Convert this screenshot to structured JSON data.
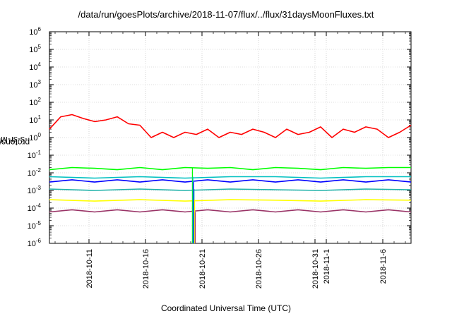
{
  "chart_data": {
    "type": "line",
    "title": "/data/run/goesPlots/archive/2018-11-07/flux/../flux/31daysMoonFluxes.txt",
    "xlabel": "Coordinated Universal Time (UTC)",
    "ylabel_base": "protons/cm",
    "ylabel_sup": "2",
    "ylabel_rest": "-s-sr-MeV",
    "yscale": "log",
    "ylim": [
      1e-06,
      1000000.0
    ],
    "y_ticks": [
      {
        "mantissa": "10",
        "exp": "-6",
        "value": 1e-06
      },
      {
        "mantissa": "10",
        "exp": "-5",
        "value": 1e-05
      },
      {
        "mantissa": "10",
        "exp": "-4",
        "value": 0.0001
      },
      {
        "mantissa": "10",
        "exp": "-3",
        "value": 0.001
      },
      {
        "mantissa": "10",
        "exp": "-2",
        "value": 0.01
      },
      {
        "mantissa": "10",
        "exp": "-1",
        "value": 0.1
      },
      {
        "mantissa": "10",
        "exp": "0",
        "value": 1
      },
      {
        "mantissa": "10",
        "exp": "1",
        "value": 10
      },
      {
        "mantissa": "10",
        "exp": "2",
        "value": 100
      },
      {
        "mantissa": "10",
        "exp": "3",
        "value": 1000
      },
      {
        "mantissa": "10",
        "exp": "4",
        "value": 10000
      },
      {
        "mantissa": "10",
        "exp": "5",
        "value": 100000
      },
      {
        "mantissa": "10",
        "exp": "6",
        "value": 1000000
      }
    ],
    "xlim": [
      "2018-10-07 12:00",
      "2018-11-08 12:00"
    ],
    "x_ticks": [
      {
        "date": "2018-10-11",
        "label": "2018-10-11"
      },
      {
        "date": "2018-10-16",
        "label": "2018-10-16"
      },
      {
        "date": "2018-10-21",
        "label": "2018-10-21"
      },
      {
        "date": "2018-10-26",
        "label": "2018-10-26"
      },
      {
        "date": "2018-10-31",
        "label": "2018-10-31"
      },
      {
        "date": "2018-11-01",
        "label": "2018-11-1"
      },
      {
        "date": "2018-11-06",
        "label": "2018-11-6"
      }
    ],
    "grid": true,
    "legend": "none",
    "dropout": {
      "date": "2018-10-20 06:00",
      "y_low": 1e-06
    },
    "series": [
      {
        "color": "#ff0000",
        "dates": [
          "2018-10-07 12:00",
          "2018-10-08 12:00",
          "2018-10-09 12:00",
          "2018-10-10 12:00",
          "2018-10-11 12:00",
          "2018-10-12 12:00",
          "2018-10-13 12:00",
          "2018-10-14 12:00",
          "2018-10-15 12:00",
          "2018-10-16 12:00",
          "2018-10-17 12:00",
          "2018-10-18 12:00",
          "2018-10-19 12:00",
          "2018-10-20 12:00",
          "2018-10-21 12:00",
          "2018-10-22 12:00",
          "2018-10-23 12:00",
          "2018-10-24 12:00",
          "2018-10-25 12:00",
          "2018-10-26 12:00",
          "2018-10-27 12:00",
          "2018-10-28 12:00",
          "2018-10-29 12:00",
          "2018-10-30 12:00",
          "2018-10-31 12:00",
          "2018-11-01 12:00",
          "2018-11-02 12:00",
          "2018-11-03 12:00",
          "2018-11-04 12:00",
          "2018-11-05 12:00",
          "2018-11-06 12:00",
          "2018-11-07 12:00",
          "2018-11-08 12:00"
        ],
        "values": [
          3,
          15,
          20,
          12,
          8,
          10,
          15,
          6,
          5,
          1,
          2,
          1,
          2,
          1.5,
          3,
          1,
          2,
          1.5,
          3,
          2,
          1,
          3,
          1.5,
          2,
          4,
          1,
          3,
          2,
          4,
          3,
          1,
          2,
          5
        ]
      },
      {
        "color": "#00ff00",
        "dates": [
          "2018-10-07 12:00",
          "2018-10-09 12:00",
          "2018-10-11 12:00",
          "2018-10-13 12:00",
          "2018-10-15 12:00",
          "2018-10-17 12:00",
          "2018-10-19 12:00",
          "2018-10-21 12:00",
          "2018-10-23 12:00",
          "2018-10-25 12:00",
          "2018-10-27 12:00",
          "2018-10-29 12:00",
          "2018-10-31 12:00",
          "2018-11-02 12:00",
          "2018-11-04 12:00",
          "2018-11-06 12:00",
          "2018-11-08 12:00"
        ],
        "values": [
          0.015,
          0.02,
          0.018,
          0.015,
          0.02,
          0.015,
          0.02,
          0.018,
          0.02,
          0.015,
          0.02,
          0.018,
          0.015,
          0.02,
          0.018,
          0.02,
          0.02
        ]
      },
      {
        "color": "#00c0c0",
        "dates": [
          "2018-10-07 12:00",
          "2018-10-11 12:00",
          "2018-10-15 12:00",
          "2018-10-19 12:00",
          "2018-10-23 12:00",
          "2018-10-27 12:00",
          "2018-10-31 12:00",
          "2018-11-04 12:00",
          "2018-11-08 12:00"
        ],
        "values": [
          0.006,
          0.005,
          0.006,
          0.005,
          0.006,
          0.006,
          0.005,
          0.006,
          0.006
        ]
      },
      {
        "color": "#0000ff",
        "dates": [
          "2018-10-07 12:00",
          "2018-10-09 12:00",
          "2018-10-11 12:00",
          "2018-10-13 12:00",
          "2018-10-15 12:00",
          "2018-10-17 12:00",
          "2018-10-19 12:00",
          "2018-10-21 12:00",
          "2018-10-23 12:00",
          "2018-10-25 12:00",
          "2018-10-27 12:00",
          "2018-10-29 12:00",
          "2018-10-31 12:00",
          "2018-11-02 12:00",
          "2018-11-04 12:00",
          "2018-11-06 12:00",
          "2018-11-08 12:00"
        ],
        "values": [
          0.003,
          0.004,
          0.003,
          0.004,
          0.003,
          0.004,
          0.003,
          0.004,
          0.003,
          0.004,
          0.003,
          0.004,
          0.003,
          0.004,
          0.003,
          0.004,
          0.003
        ]
      },
      {
        "color": "#20b2aa",
        "dates": [
          "2018-10-07 12:00",
          "2018-10-11 12:00",
          "2018-10-15 12:00",
          "2018-10-19 12:00",
          "2018-10-23 12:00",
          "2018-10-27 12:00",
          "2018-10-31 12:00",
          "2018-11-04 12:00",
          "2018-11-08 12:00"
        ],
        "values": [
          0.0012,
          0.001,
          0.0012,
          0.001,
          0.0012,
          0.0011,
          0.001,
          0.0012,
          0.0011
        ]
      },
      {
        "color": "#ffff00",
        "dates": [
          "2018-10-07 12:00",
          "2018-10-11 12:00",
          "2018-10-15 12:00",
          "2018-10-19 12:00",
          "2018-10-23 12:00",
          "2018-10-27 12:00",
          "2018-10-31 12:00",
          "2018-11-04 12:00",
          "2018-11-08 12:00"
        ],
        "values": [
          0.0003,
          0.00025,
          0.0003,
          0.00025,
          0.0003,
          0.00028,
          0.00025,
          0.0003,
          0.00028
        ]
      },
      {
        "color": "#993366",
        "dates": [
          "2018-10-07 12:00",
          "2018-10-09 12:00",
          "2018-10-11 12:00",
          "2018-10-13 12:00",
          "2018-10-15 12:00",
          "2018-10-17 12:00",
          "2018-10-19 12:00",
          "2018-10-21 12:00",
          "2018-10-23 12:00",
          "2018-10-25 12:00",
          "2018-10-27 12:00",
          "2018-10-29 12:00",
          "2018-10-31 12:00",
          "2018-11-02 12:00",
          "2018-11-04 12:00",
          "2018-11-06 12:00",
          "2018-11-08 12:00"
        ],
        "values": [
          6e-05,
          8e-05,
          6e-05,
          8e-05,
          6e-05,
          8e-05,
          6e-05,
          8e-05,
          6e-05,
          8e-05,
          6e-05,
          8e-05,
          6e-05,
          8e-05,
          6e-05,
          8e-05,
          6e-05
        ]
      }
    ]
  }
}
